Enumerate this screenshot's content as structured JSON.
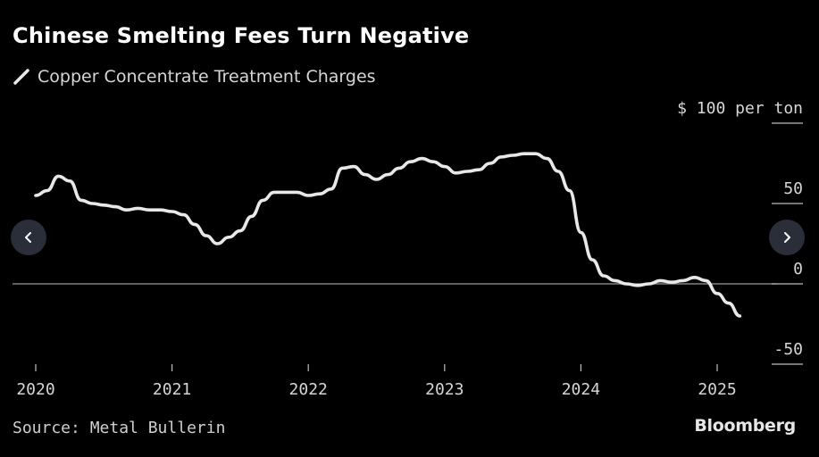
{
  "header": {
    "title": "Chinese Smelting Fees Turn Negative"
  },
  "footer": {
    "source": "Source: Metal Bullerin",
    "logo": "Bloomberg"
  },
  "navigation": {
    "prev_icon": "chevron-left-icon",
    "next_icon": "chevron-right-icon"
  },
  "colors": {
    "background": "#000000",
    "line": "#e8e8e8",
    "text": "#ffffff",
    "muted_text": "#cfcfcf",
    "zero_line": "#9a9a9a",
    "button": "#2a2e38"
  },
  "chart_data": {
    "type": "line",
    "title": "Chinese Smelting Fees Turn Negative",
    "unit_label": "$ 100 per ton",
    "y_ticks": [
      -50,
      0,
      50,
      100
    ],
    "y_tick_labels": [
      "-50",
      "0",
      "50",
      "$ 100 per ton"
    ],
    "x_ticks": [
      2020,
      2021,
      2022,
      2023,
      2024,
      2025
    ],
    "x_tick_labels": [
      "2020",
      "2021",
      "2022",
      "2023",
      "2024",
      "2025"
    ],
    "xlim": [
      "2019-12",
      "2025-06"
    ],
    "ylim": [
      -60,
      100
    ],
    "grid": false,
    "zero_line": true,
    "legend_position": "top-left",
    "series": [
      {
        "name": "Copper Concentrate Treatment Charges",
        "x": [
          "2020-01",
          "2020-02",
          "2020-03",
          "2020-04",
          "2020-05",
          "2020-06",
          "2020-07",
          "2020-08",
          "2020-09",
          "2020-10",
          "2020-11",
          "2020-12",
          "2021-01",
          "2021-02",
          "2021-03",
          "2021-04",
          "2021-05",
          "2021-06",
          "2021-07",
          "2021-08",
          "2021-09",
          "2021-10",
          "2021-11",
          "2021-12",
          "2022-01",
          "2022-02",
          "2022-03",
          "2022-04",
          "2022-05",
          "2022-06",
          "2022-07",
          "2022-08",
          "2022-09",
          "2022-10",
          "2022-11",
          "2022-12",
          "2023-01",
          "2023-02",
          "2023-03",
          "2023-04",
          "2023-05",
          "2023-06",
          "2023-07",
          "2023-08",
          "2023-09",
          "2023-10",
          "2023-11",
          "2023-12",
          "2024-01",
          "2024-02",
          "2024-03",
          "2024-04",
          "2024-05",
          "2024-06",
          "2024-07",
          "2024-08",
          "2024-09",
          "2024-10",
          "2024-11",
          "2024-12",
          "2025-01",
          "2025-02",
          "2025-03"
        ],
        "y": [
          55,
          58,
          67,
          64,
          52,
          50,
          49,
          48,
          46,
          47,
          46,
          46,
          45,
          43,
          37,
          30,
          25,
          29,
          33,
          42,
          52,
          57,
          57,
          57,
          55,
          56,
          59,
          72,
          73,
          68,
          65,
          68,
          72,
          76,
          78,
          76,
          73,
          69,
          70,
          71,
          75,
          79,
          80,
          81,
          81,
          78,
          70,
          58,
          32,
          15,
          5,
          2,
          0,
          -1,
          0,
          2,
          1,
          2,
          4,
          2,
          -6,
          -12,
          -20
        ]
      }
    ]
  }
}
